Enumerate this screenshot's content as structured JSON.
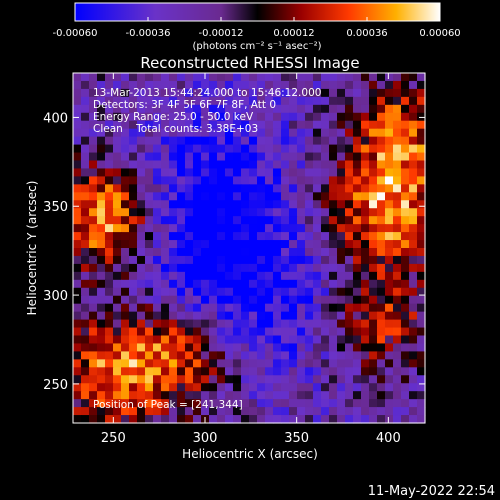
{
  "chart_data": {
    "type": "heatmap",
    "title": "Reconstructed RHESSI Image",
    "xlabel": "Heliocentric X (arcsec)",
    "ylabel": "Heliocentric Y (arcsec)",
    "xlim": [
      228,
      420
    ],
    "ylim": [
      228,
      425
    ],
    "x_ticks": [
      "250",
      "300",
      "350",
      "400"
    ],
    "y_ticks": [
      "250",
      "300",
      "350",
      "400"
    ],
    "x_tick_values": [
      250,
      300,
      350,
      400
    ],
    "y_tick_values": [
      250,
      300,
      350,
      400
    ],
    "colorbar": {
      "range": [
        -0.0006,
        0.0006
      ],
      "tick_labels": [
        "-0.00060",
        "-0.00036",
        "-0.00012",
        "0.00012",
        "0.00036",
        "0.00060"
      ],
      "tick_values": [
        -0.0006,
        -0.00036,
        -0.00012,
        0.00012,
        0.00036,
        0.0006
      ],
      "unit_label": "(photons cm⁻² s⁻¹ asec⁻²)",
      "colors": [
        "#0000ff",
        "#5a2ad0",
        "#7c3ca0",
        "#2a0040",
        "#000000",
        "#8a0000",
        "#ff3000",
        "#ffa000",
        "#ffffc0",
        "#ffffff"
      ]
    },
    "annotations": [
      "13-Mar-2013 15:44:24.000 to 15:46:12.000",
      "Detectors: 3F 4F 5F 6F 7F 8F, Att 0",
      "Energy Range: 25.0 - 50.0 keV",
      "Clean    Total counts: 3.38E+03"
    ],
    "peak_label": "Position of Peak = [241,344]",
    "peak_position": [
      241,
      344
    ],
    "grid": false
  },
  "footer": {
    "date": "11-May-2022 22:54"
  }
}
